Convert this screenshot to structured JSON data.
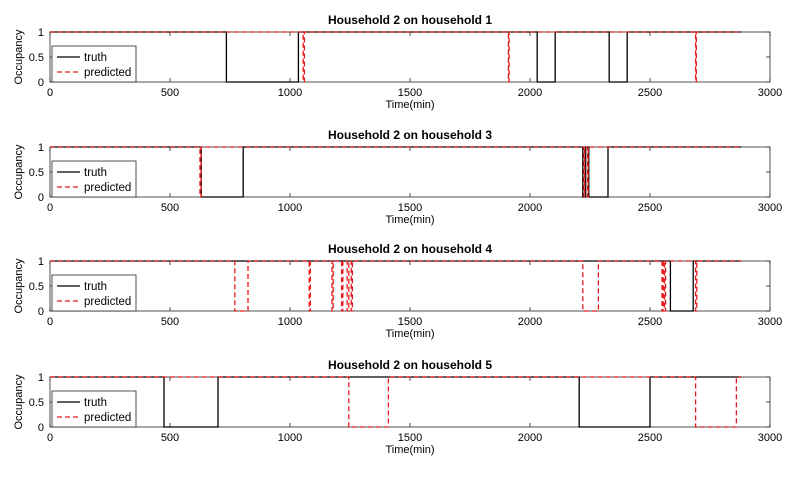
{
  "chart_data": [
    {
      "type": "line",
      "title": "Household 2 on household 1",
      "xlabel": "Time(min)",
      "ylabel": "Occupancy",
      "xlim": [
        0,
        3000
      ],
      "ylim": [
        0,
        1
      ],
      "xticks": [
        0,
        500,
        1000,
        1500,
        2000,
        2500,
        3000
      ],
      "yticks": [
        0,
        0.5,
        1
      ],
      "legend": {
        "placement": "bottom-left",
        "entries": [
          "truth",
          "predicted"
        ]
      },
      "grid": false,
      "series": [
        {
          "name": "truth",
          "color": "#000000",
          "style": "solid",
          "x": [
            0,
            735,
            735,
            1035,
            1035,
            2030,
            2030,
            2105,
            2105,
            2330,
            2330,
            2405,
            2405,
            2880
          ],
          "y": [
            1,
            1,
            0,
            0,
            1,
            1,
            0,
            0,
            1,
            1,
            0,
            0,
            1,
            1
          ]
        },
        {
          "name": "predicted",
          "color": "#e8191b",
          "style": "dashed",
          "x": [
            0,
            1055,
            1055,
            1060,
            1060,
            1910,
            1910,
            1913,
            1913,
            2690,
            2690,
            2693,
            2693,
            2880
          ],
          "y": [
            1,
            1,
            0,
            0,
            1,
            1,
            0,
            0,
            1,
            1,
            0,
            0,
            1,
            1
          ]
        }
      ]
    },
    {
      "type": "line",
      "title": "Household 2 on household 3",
      "xlabel": "Time(min)",
      "ylabel": "Occupancy",
      "xlim": [
        0,
        3000
      ],
      "ylim": [
        0,
        1
      ],
      "xticks": [
        0,
        500,
        1000,
        1500,
        2000,
        2500,
        3000
      ],
      "yticks": [
        0,
        0.5,
        1
      ],
      "legend": {
        "placement": "bottom-left",
        "entries": [
          "truth",
          "predicted"
        ]
      },
      "grid": false,
      "series": [
        {
          "name": "truth",
          "color": "#000000",
          "style": "solid",
          "x": [
            0,
            630,
            630,
            805,
            805,
            2220,
            2220,
            2232,
            2232,
            2245,
            2245,
            2325,
            2325,
            2880
          ],
          "y": [
            1,
            1,
            0,
            0,
            1,
            1,
            0,
            0,
            1,
            1,
            0,
            0,
            1,
            1
          ]
        },
        {
          "name": "predicted",
          "color": "#e8191b",
          "style": "dashed",
          "x": [
            0,
            625,
            625,
            630,
            630,
            2225,
            2225,
            2228,
            2228,
            2240,
            2240,
            2243,
            2243,
            2880
          ],
          "y": [
            1,
            1,
            0,
            0,
            1,
            1,
            0,
            0,
            1,
            1,
            0,
            0,
            1,
            1
          ]
        }
      ]
    },
    {
      "type": "line",
      "title": "Household 2 on household 4",
      "xlabel": "Time(min)",
      "ylabel": "Occupancy",
      "xlim": [
        0,
        3000
      ],
      "ylim": [
        0,
        1
      ],
      "xticks": [
        0,
        500,
        1000,
        1500,
        2000,
        2500,
        3000
      ],
      "yticks": [
        0,
        0.5,
        1
      ],
      "legend": {
        "placement": "bottom-left",
        "entries": [
          "truth",
          "predicted"
        ]
      },
      "grid": false,
      "series": [
        {
          "name": "truth",
          "color": "#000000",
          "style": "solid",
          "x": [
            0,
            2585,
            2585,
            2680,
            2680,
            2880
          ],
          "y": [
            1,
            1,
            0,
            0,
            1,
            1
          ]
        },
        {
          "name": "predicted",
          "color": "#e8191b",
          "style": "dashed",
          "x": [
            0,
            770,
            770,
            825,
            825,
            1080,
            1080,
            1085,
            1085,
            1175,
            1175,
            1180,
            1180,
            1215,
            1215,
            1220,
            1220,
            1238,
            1238,
            1245,
            1245,
            1255,
            1255,
            1260,
            1260,
            2220,
            2220,
            2285,
            2285,
            2550,
            2550,
            2555,
            2555,
            2560,
            2560,
            2565,
            2565,
            2690,
            2690,
            2695,
            2695,
            2880
          ],
          "y": [
            1,
            1,
            0,
            0,
            1,
            1,
            0,
            0,
            1,
            1,
            0,
            0,
            1,
            1,
            0,
            0,
            1,
            1,
            0,
            0,
            1,
            1,
            0,
            0,
            1,
            1,
            0,
            0,
            1,
            1,
            0,
            0,
            1,
            1,
            0,
            0,
            1,
            1,
            0,
            0,
            1,
            1
          ]
        }
      ]
    },
    {
      "type": "line",
      "title": "Household 2 on household 5",
      "xlabel": "Time(min)",
      "ylabel": "Occupancy",
      "xlim": [
        0,
        3000
      ],
      "ylim": [
        0,
        1
      ],
      "xticks": [
        0,
        500,
        1000,
        1500,
        2000,
        2500,
        3000
      ],
      "yticks": [
        0,
        0.5,
        1
      ],
      "legend": {
        "placement": "bottom-left",
        "entries": [
          "truth",
          "predicted"
        ]
      },
      "grid": false,
      "series": [
        {
          "name": "truth",
          "color": "#000000",
          "style": "solid",
          "x": [
            0,
            475,
            475,
            700,
            700,
            2205,
            2205,
            2500,
            2500,
            2880
          ],
          "y": [
            1,
            1,
            0,
            0,
            1,
            1,
            0,
            0,
            1,
            1
          ]
        },
        {
          "name": "predicted",
          "color": "#e8191b",
          "style": "dashed",
          "x": [
            0,
            1245,
            1245,
            1410,
            1410,
            2690,
            2690,
            2860,
            2860,
            2880
          ],
          "y": [
            1,
            1,
            0,
            0,
            1,
            1,
            0,
            0,
            1,
            1
          ]
        }
      ]
    }
  ]
}
